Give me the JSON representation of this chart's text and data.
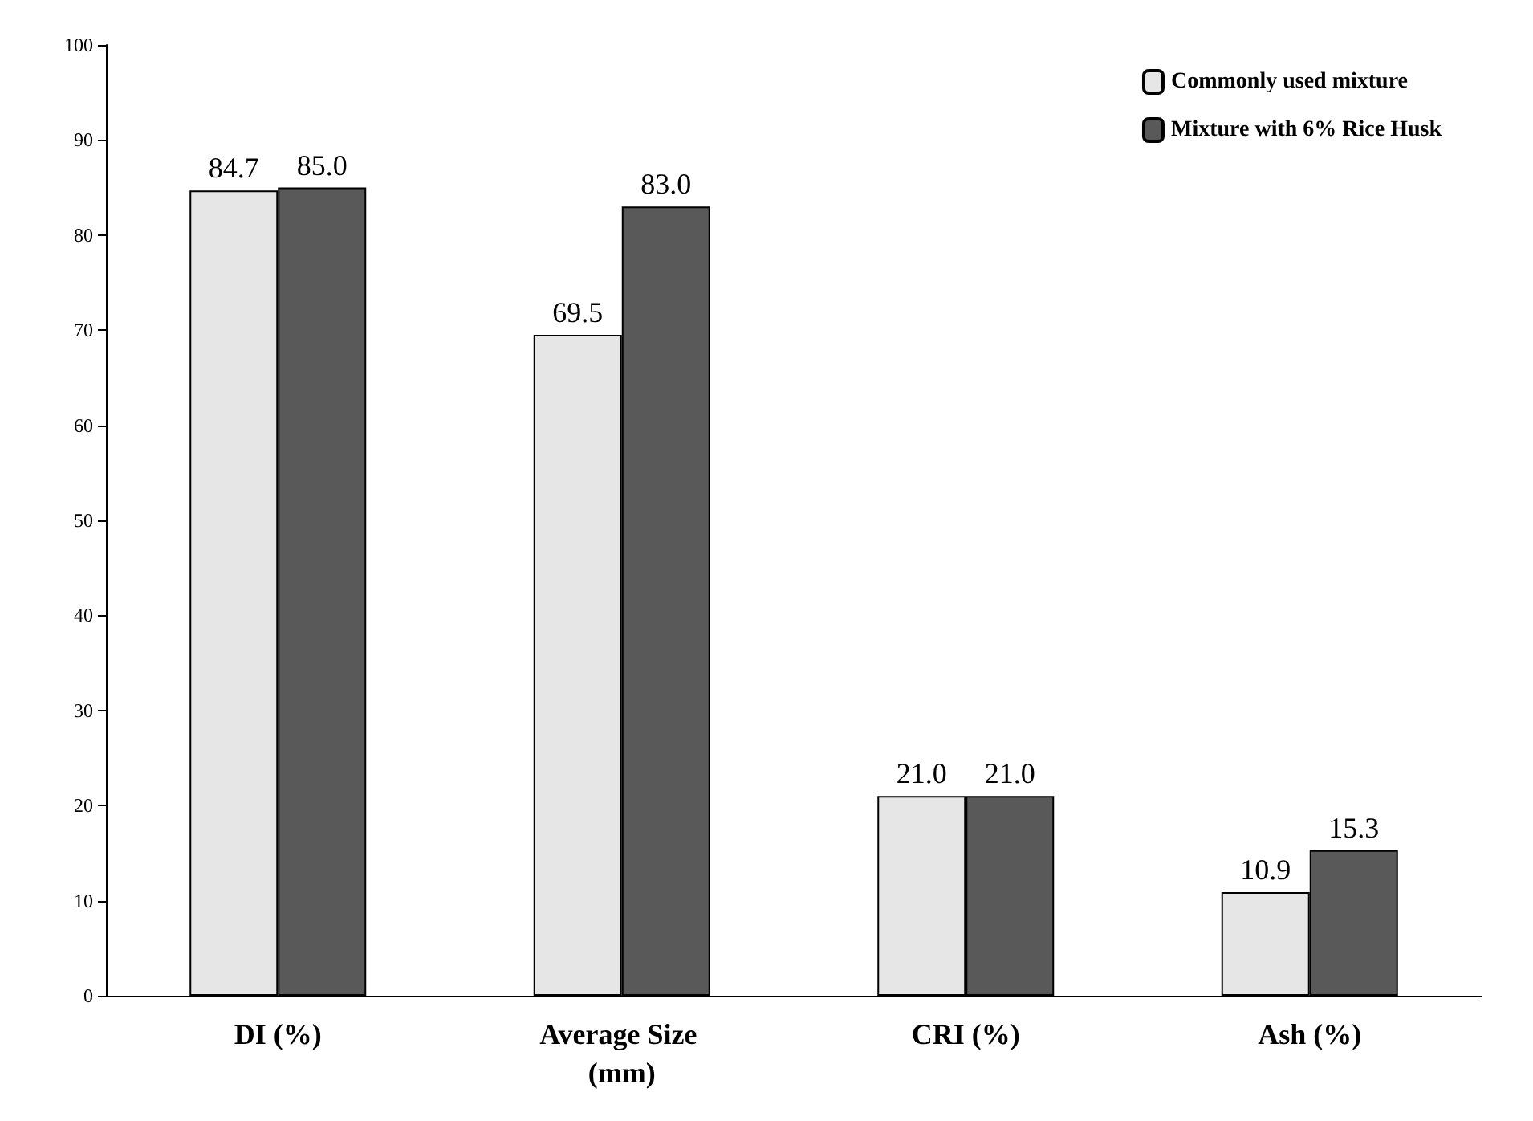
{
  "chart_data": {
    "type": "bar",
    "categories": [
      "DI (%)",
      "Average Size (mm)",
      "CRI (%)",
      "Ash (%)"
    ],
    "series": [
      {
        "name": "Commonly used mixture",
        "color": "#e6e6e6",
        "values": [
          84.7,
          69.5,
          21.0,
          10.9
        ],
        "value_labels": [
          "84.7",
          "69.5",
          "21.0",
          "10.9"
        ]
      },
      {
        "name": "Mixture with 6% Rice Husk",
        "color": "#595959",
        "values": [
          85.0,
          83.0,
          21.0,
          15.3
        ],
        "value_labels": [
          "85.0",
          "83.0",
          "21.0",
          "15.3"
        ]
      }
    ],
    "ylim": [
      0,
      100
    ],
    "yticks": [
      0,
      10,
      20,
      30,
      40,
      50,
      60,
      70,
      80,
      90,
      100
    ],
    "grid": false,
    "legend": "top right"
  }
}
